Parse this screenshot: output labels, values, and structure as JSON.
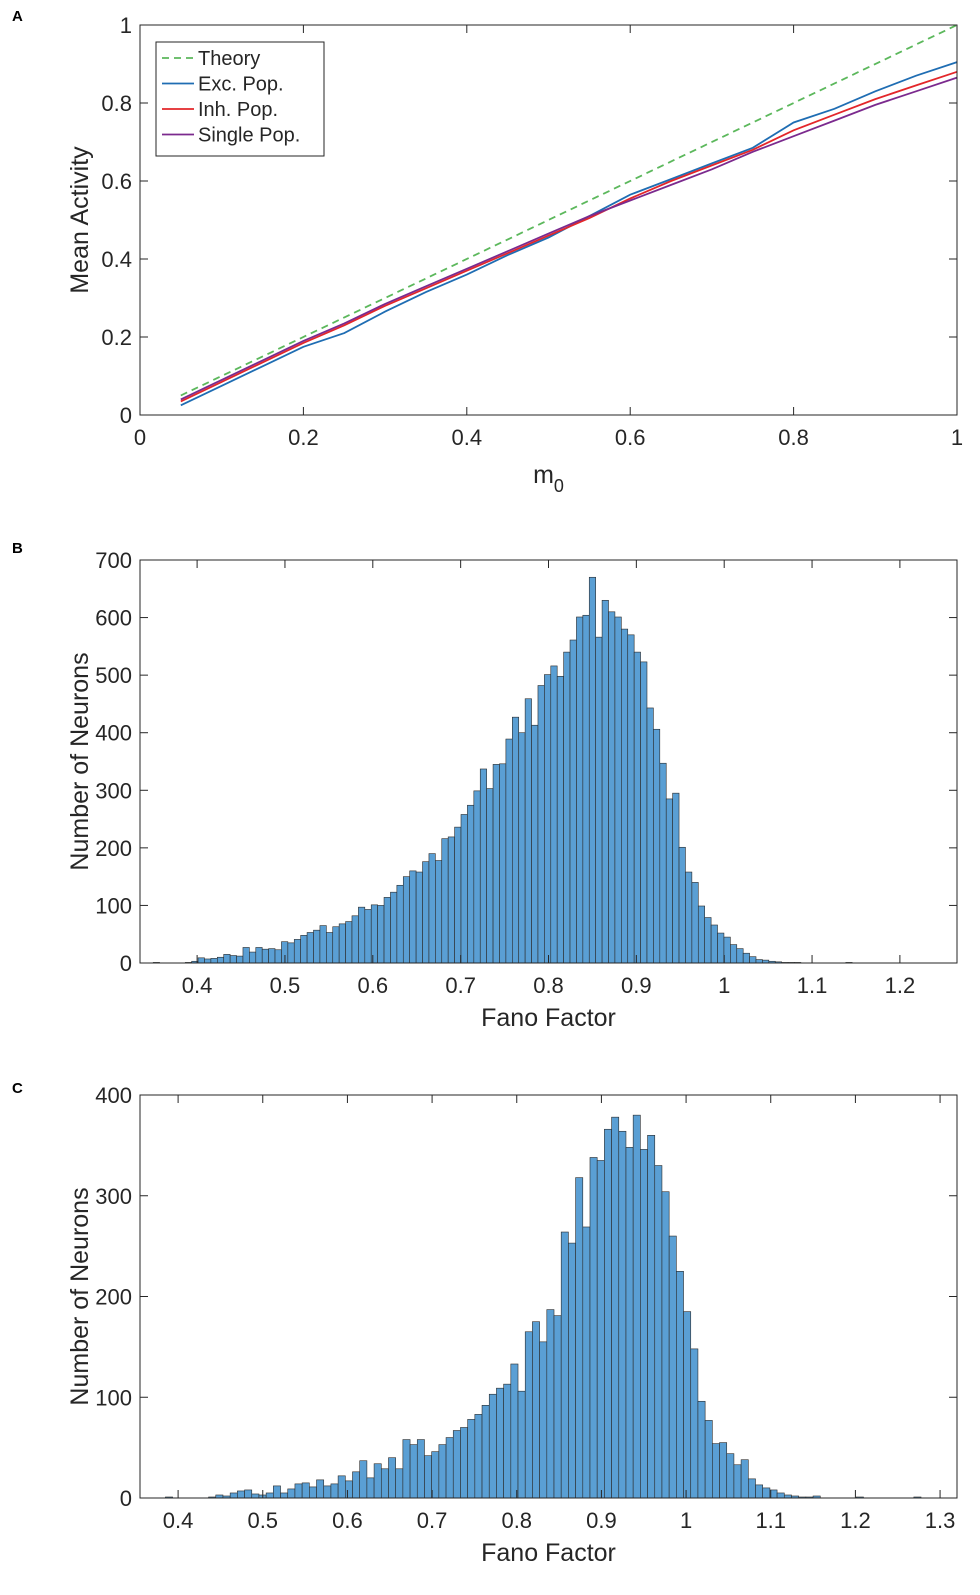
{
  "chart_data": [
    {
      "panel": "A",
      "type": "line",
      "xlabel": "m",
      "xlabel_sub": "0",
      "ylabel": "Mean Activity",
      "xlim": [
        0,
        1
      ],
      "ylim": [
        0,
        1
      ],
      "x_ticks": [
        "0",
        "0.2",
        "0.4",
        "0.6",
        "0.8",
        "1"
      ],
      "y_ticks": [
        "0",
        "0.2",
        "0.4",
        "0.6",
        "0.8",
        "1"
      ],
      "grid": false,
      "legend_position": "top-left",
      "series": [
        {
          "name": "Theory",
          "color": "#5cb85c",
          "dash": "dashed",
          "x": [
            0.05,
            1.0
          ],
          "y": [
            0.05,
            1.0
          ]
        },
        {
          "name": "Exc. Pop.",
          "color": "#1f6db3",
          "x": [
            0.05,
            0.1,
            0.15,
            0.2,
            0.25,
            0.3,
            0.35,
            0.4,
            0.45,
            0.5,
            0.55,
            0.6,
            0.65,
            0.7,
            0.75,
            0.8,
            0.85,
            0.9,
            0.95,
            1.0
          ],
          "y": [
            0.025,
            0.075,
            0.125,
            0.175,
            0.21,
            0.265,
            0.315,
            0.36,
            0.41,
            0.455,
            0.51,
            0.565,
            0.605,
            0.645,
            0.685,
            0.75,
            0.785,
            0.83,
            0.87,
            0.905
          ]
        },
        {
          "name": "Inh. Pop.",
          "color": "#e3262a",
          "x": [
            0.05,
            0.1,
            0.15,
            0.2,
            0.25,
            0.3,
            0.35,
            0.4,
            0.45,
            0.5,
            0.55,
            0.6,
            0.65,
            0.7,
            0.75,
            0.8,
            0.85,
            0.9,
            0.95,
            1.0
          ],
          "y": [
            0.035,
            0.085,
            0.135,
            0.185,
            0.23,
            0.28,
            0.325,
            0.37,
            0.415,
            0.46,
            0.505,
            0.555,
            0.6,
            0.64,
            0.68,
            0.73,
            0.77,
            0.81,
            0.845,
            0.88
          ]
        },
        {
          "name": "Single Pop.",
          "color": "#7b2a8e",
          "x": [
            0.05,
            0.1,
            0.15,
            0.2,
            0.25,
            0.3,
            0.35,
            0.4,
            0.45,
            0.5,
            0.55,
            0.6,
            0.65,
            0.7,
            0.75,
            0.8,
            0.85,
            0.9,
            0.95,
            1.0
          ],
          "y": [
            0.04,
            0.09,
            0.14,
            0.19,
            0.235,
            0.285,
            0.33,
            0.375,
            0.42,
            0.465,
            0.51,
            0.55,
            0.59,
            0.63,
            0.675,
            0.715,
            0.755,
            0.795,
            0.83,
            0.865
          ]
        }
      ]
    },
    {
      "panel": "B",
      "type": "bar",
      "xlabel": "Fano Factor",
      "ylabel": "Number of Neurons",
      "xlim": [
        0.335,
        1.265
      ],
      "ylim": [
        0,
        700
      ],
      "x_ticks": [
        "0.4",
        "0.5",
        "0.6",
        "0.7",
        "0.8",
        "0.9",
        "1",
        "1.1",
        "1.2"
      ],
      "y_ticks": [
        "0",
        "100",
        "200",
        "300",
        "400",
        "500",
        "600",
        "700"
      ],
      "bar_color": "#5a9fd4",
      "bin_start": 0.35,
      "bin_width": 0.0073,
      "values": [
        1,
        0,
        0,
        0,
        0,
        1,
        3,
        9,
        7,
        8,
        10,
        15,
        13,
        12,
        27,
        19,
        27,
        24,
        25,
        23,
        37,
        35,
        41,
        48,
        53,
        57,
        65,
        53,
        63,
        68,
        72,
        82,
        97,
        93,
        101,
        100,
        114,
        123,
        135,
        150,
        160,
        158,
        176,
        190,
        178,
        216,
        219,
        236,
        258,
        274,
        299,
        337,
        303,
        345,
        346,
        389,
        427,
        400,
        459,
        413,
        482,
        501,
        516,
        498,
        540,
        561,
        601,
        604,
        670,
        566,
        630,
        610,
        601,
        580,
        570,
        540,
        523,
        443,
        406,
        347,
        285,
        295,
        201,
        158,
        140,
        99,
        79,
        66,
        52,
        45,
        32,
        25,
        17,
        11,
        6,
        5,
        3,
        2,
        1,
        1,
        1,
        0,
        0,
        0,
        0,
        0,
        0,
        0,
        1
      ]
    },
    {
      "panel": "C",
      "type": "bar",
      "xlabel": "Fano Factor",
      "ylabel": "Number of Neurons",
      "xlim": [
        0.355,
        1.32
      ],
      "ylim": [
        0,
        400
      ],
      "x_ticks": [
        "0.4",
        "0.5",
        "0.6",
        "0.7",
        "0.8",
        "0.9",
        "1",
        "1.1",
        "1.2",
        "1.3"
      ],
      "y_ticks": [
        "0",
        "100",
        "200",
        "300",
        "400"
      ],
      "bar_color": "#5a9fd4",
      "bin_start": 0.385,
      "bin_width": 0.0085,
      "values": [
        1,
        0,
        0,
        0,
        0,
        0,
        1,
        3,
        2,
        5,
        7,
        8,
        4,
        3,
        5,
        12,
        5,
        9,
        14,
        15,
        11,
        18,
        12,
        14,
        22,
        17,
        26,
        37,
        20,
        34,
        29,
        40,
        29,
        58,
        53,
        58,
        42,
        46,
        53,
        60,
        67,
        70,
        78,
        83,
        92,
        103,
        109,
        113,
        133,
        106,
        165,
        175,
        155,
        187,
        181,
        264,
        253,
        318,
        269,
        338,
        335,
        366,
        378,
        364,
        348,
        380,
        346,
        360,
        330,
        304,
        260,
        225,
        185,
        148,
        96,
        77,
        54,
        55,
        44,
        33,
        38,
        19,
        13,
        10,
        8,
        5,
        3,
        2,
        1,
        1,
        2,
        0,
        0,
        0,
        0,
        0,
        1,
        0,
        0,
        0,
        0,
        0,
        0,
        0,
        1
      ]
    }
  ]
}
